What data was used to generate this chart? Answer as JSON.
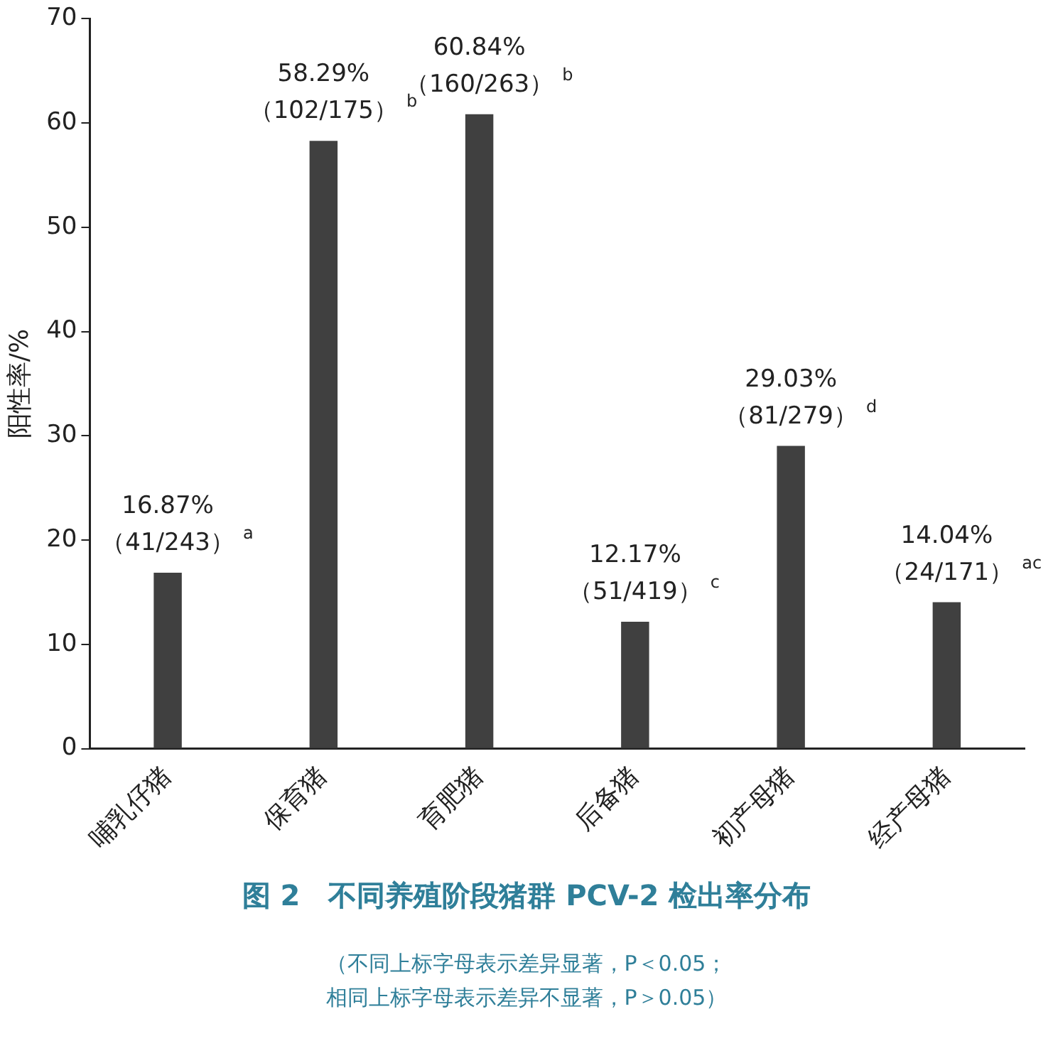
{
  "chart_data": {
    "type": "bar",
    "title": "图 2　不同养殖阶段猪群 PCV-2 检出率分布",
    "ylabel": "阳性率/%",
    "categories": [
      "哺乳仔猪",
      "保育猪",
      "育肥猪",
      "后备猪",
      "初产母猪",
      "经产母猪"
    ],
    "values": [
      16.87,
      58.29,
      60.84,
      12.17,
      29.03,
      14.04
    ],
    "value_labels": [
      "16.87%\n（41/243）$^{a}$",
      "58.29%\n（102/175）$^{b}$",
      "60.84%\n（160/263）$^{b}$",
      "12.17%\n（51/419）$^{c}$",
      "29.03%\n（81/279）$^{d}$",
      "14.04%\n（24/171）$^{ac}$"
    ],
    "color": "#404040",
    "ylim": [
      0,
      70
    ],
    "yticks": [
      0,
      10,
      20,
      30,
      40,
      50,
      60,
      70
    ],
    "grid": false,
    "legend": false,
    "annotations": [
      "（不同上标字母表示差异显著，P＜0.05；",
      "相同上标字母表示差异不显著，P＞0.05）"
    ]
  }
}
